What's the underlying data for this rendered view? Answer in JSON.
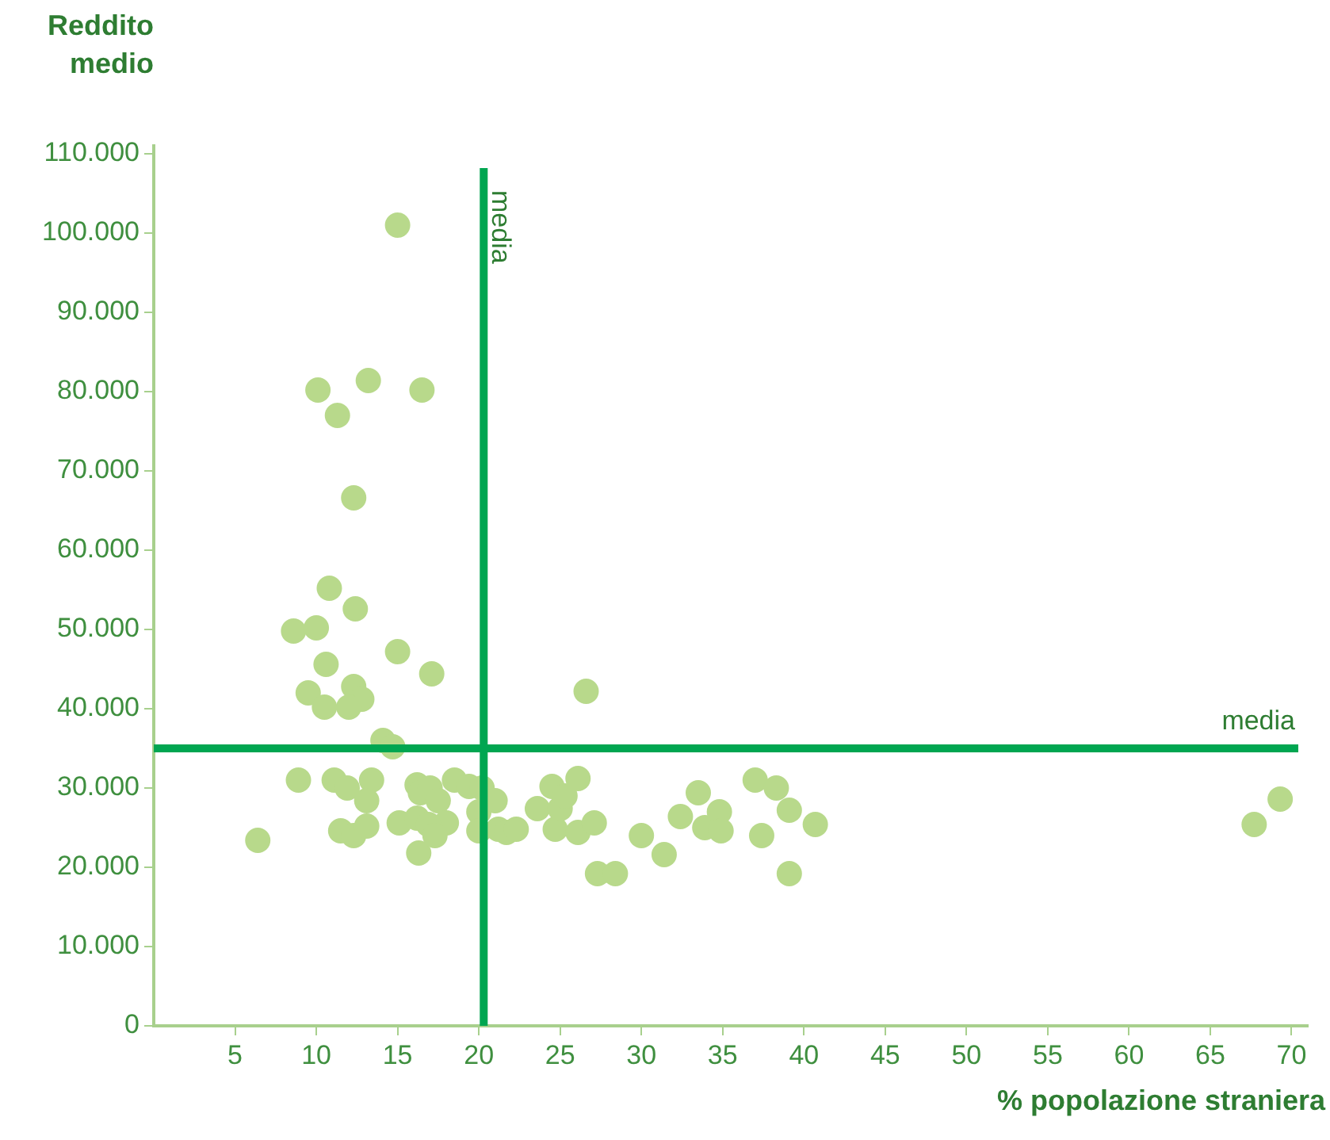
{
  "chart_data": {
    "type": "scatter",
    "xlabel": "% popolazione straniera",
    "ylabel": "Reddito medio",
    "xlim": [
      0,
      71
    ],
    "xticks": [
      5,
      10,
      15,
      20,
      25,
      30,
      35,
      40,
      45,
      50,
      55,
      60,
      65,
      70
    ],
    "ylim": [
      0,
      111000
    ],
    "yticks": [
      0,
      {
        "value": 10000,
        "label": "10.000"
      },
      {
        "value": 20000,
        "label": "20.000"
      },
      {
        "value": 30000,
        "label": "30.000"
      },
      {
        "value": 40000,
        "label": "40.000"
      },
      {
        "value": 50000,
        "label": "50.000"
      },
      {
        "value": 60000,
        "label": "60.000"
      },
      {
        "value": 70000,
        "label": "70.000"
      },
      {
        "value": 80000,
        "label": "80.000"
      },
      {
        "value": 90000,
        "label": "90.000"
      },
      {
        "value": 100000,
        "label": "100.000"
      },
      {
        "value": 110000,
        "label": "110.000"
      }
    ],
    "grid": false,
    "legend": false,
    "marker": "circle",
    "ref_lines": [
      {
        "axis": "x",
        "value": 20.3,
        "label": "media",
        "color": "#00a651"
      },
      {
        "axis": "y",
        "value": 35000,
        "label": "media",
        "color": "#00a651"
      }
    ],
    "series": [
      {
        "color": "#b8d98b",
        "x": [
          6.4,
          8.9,
          8.6,
          10.0,
          10.1,
          11.3,
          10.8,
          10.6,
          9.5,
          10.5,
          12.3,
          12.4,
          13.2,
          15.0,
          16.5,
          15.0,
          17.1,
          12.3,
          12.8,
          12.0,
          14.1,
          14.7,
          11.1,
          11.9,
          13.4,
          13.1,
          11.5,
          12.3,
          13.1,
          15.1,
          16.2,
          16.3,
          16.2,
          16.4,
          17.0,
          17.5,
          18.0,
          16.9,
          17.3,
          18.5,
          19.4,
          20.2,
          20.0,
          20.0,
          21.0,
          21.2,
          21.7,
          22.3,
          23.6,
          24.5,
          24.7,
          25.0,
          25.3,
          26.1,
          26.1,
          26.6,
          27.1,
          27.3,
          28.4,
          30.0,
          31.4,
          32.4,
          33.5,
          33.9,
          34.8,
          34.9,
          37.0,
          37.4,
          38.3,
          39.1,
          39.1,
          40.7,
          67.7,
          69.3
        ],
        "values": [
          23400,
          31000,
          49800,
          50200,
          80200,
          77000,
          55200,
          45600,
          42000,
          40200,
          66600,
          52600,
          81400,
          101000,
          80200,
          47200,
          44400,
          42800,
          41200,
          40200,
          36000,
          35200,
          31000,
          30000,
          31000,
          28400,
          24600,
          24000,
          25200,
          25600,
          26200,
          21800,
          30400,
          29400,
          30000,
          28400,
          25600,
          25400,
          24000,
          31000,
          30200,
          30000,
          27000,
          24600,
          28400,
          24800,
          24400,
          24800,
          27400,
          30200,
          24800,
          27400,
          29000,
          31200,
          24400,
          42200,
          25600,
          19200,
          19200,
          24000,
          21600,
          26400,
          29400,
          25000,
          27000,
          24600,
          31000,
          24000,
          30000,
          27200,
          19200,
          25400,
          25400,
          28600
        ]
      }
    ]
  }
}
